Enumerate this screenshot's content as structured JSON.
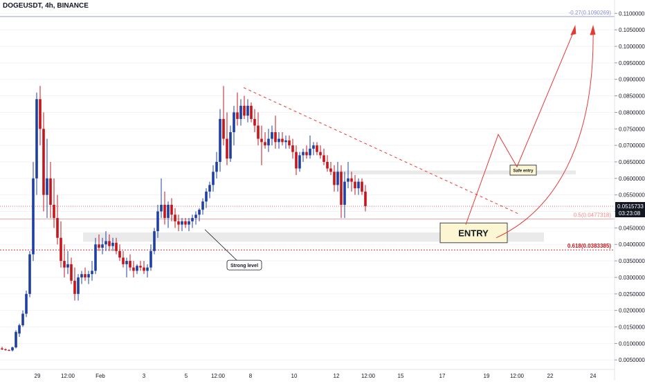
{
  "header": {
    "symbol": "DOGEUSDT, 4h, BINANCE"
  },
  "colors": {
    "bull": "#1f3fa3",
    "bear": "#c4161c",
    "annot": "#e53935",
    "zone": "#dcdcdc",
    "entry_fill": "#fdf6d3",
    "axis_text": "#131722",
    "price_tag": "#131722"
  },
  "chart_data": {
    "type": "candlestick",
    "title": "DOGEUSDT, 4h, BINANCE",
    "ylim": [
      0.004,
      0.111
    ],
    "y_ticks": [
      "0.1100000",
      "0.1050000",
      "0.1000000",
      "0.0950000",
      "0.0900000",
      "0.0850000",
      "0.0800000",
      "0.0750000",
      "0.0700000",
      "0.0650000",
      "0.0600000",
      "0.0550000",
      "0.0500000",
      "0.0450000",
      "0.0400000",
      "0.0350000",
      "0.0300000",
      "0.0250000",
      "0.0200000",
      "0.0150000",
      "0.0100000",
      "0.0050000"
    ],
    "x_ticks": [
      "29",
      "12:00",
      "Feb",
      "3",
      "5",
      "12:00",
      "8",
      "10",
      "12",
      "12:00",
      "15",
      "17",
      "19",
      "12:00",
      "22",
      "24"
    ],
    "last_price": "0.0515733",
    "countdown": "03:23:08",
    "fib_levels": [
      {
        "label": "-0.27(0.1090269)",
        "value": 0.1090269,
        "color": "#8a8fd8"
      },
      {
        "label": "0.5(0.0477318)",
        "value": 0.0477318,
        "color": "#ef8a86"
      },
      {
        "label": "0.618(0.0383385)",
        "value": 0.0383385,
        "color": "#c4161c"
      }
    ],
    "zones": [
      {
        "name": "support-zone",
        "top": 0.0436,
        "bottom": 0.0408
      },
      {
        "name": "resistance-zone",
        "top": 0.0624,
        "bottom": 0.0612
      }
    ],
    "annotations": {
      "strong_level": "Strong level",
      "entry": "ENTRY",
      "safe_entry": "Safe entry"
    },
    "candles": [
      [
        0.0085,
        0.009,
        0.008,
        0.0082
      ],
      [
        0.0082,
        0.0085,
        0.0078,
        0.008
      ],
      [
        0.008,
        0.0082,
        0.0077,
        0.0078
      ],
      [
        0.0079,
        0.009,
        0.0076,
        0.0088
      ],
      [
        0.0088,
        0.014,
        0.0085,
        0.0135
      ],
      [
        0.013,
        0.016,
        0.012,
        0.0155
      ],
      [
        0.0155,
        0.02,
        0.015,
        0.019
      ],
      [
        0.019,
        0.026,
        0.018,
        0.025
      ],
      [
        0.025,
        0.038,
        0.024,
        0.037
      ],
      [
        0.037,
        0.065,
        0.035,
        0.06
      ],
      [
        0.06,
        0.086,
        0.055,
        0.084
      ],
      [
        0.084,
        0.088,
        0.07,
        0.075
      ],
      [
        0.075,
        0.08,
        0.05,
        0.055
      ],
      [
        0.055,
        0.072,
        0.048,
        0.06
      ],
      [
        0.06,
        0.065,
        0.048,
        0.052
      ],
      [
        0.052,
        0.06,
        0.045,
        0.048
      ],
      [
        0.048,
        0.055,
        0.04,
        0.042
      ],
      [
        0.042,
        0.047,
        0.033,
        0.035
      ],
      [
        0.035,
        0.04,
        0.03,
        0.033
      ],
      [
        0.033,
        0.038,
        0.031,
        0.034
      ],
      [
        0.034,
        0.036,
        0.028,
        0.029
      ],
      [
        0.029,
        0.033,
        0.023,
        0.025
      ],
      [
        0.025,
        0.031,
        0.023,
        0.03
      ],
      [
        0.03,
        0.032,
        0.028,
        0.031
      ],
      [
        0.031,
        0.033,
        0.029,
        0.03
      ],
      [
        0.03,
        0.032,
        0.028,
        0.031
      ],
      [
        0.031,
        0.035,
        0.029,
        0.032
      ],
      [
        0.032,
        0.042,
        0.031,
        0.04
      ],
      [
        0.04,
        0.043,
        0.038,
        0.039
      ],
      [
        0.039,
        0.042,
        0.037,
        0.04
      ],
      [
        0.04,
        0.044,
        0.038,
        0.041
      ],
      [
        0.041,
        0.043,
        0.038,
        0.0395
      ],
      [
        0.0395,
        0.042,
        0.038,
        0.0405
      ],
      [
        0.0405,
        0.042,
        0.037,
        0.038
      ],
      [
        0.038,
        0.04,
        0.035,
        0.036
      ],
      [
        0.036,
        0.038,
        0.033,
        0.034
      ],
      [
        0.034,
        0.036,
        0.03,
        0.035
      ],
      [
        0.035,
        0.037,
        0.032,
        0.033
      ],
      [
        0.033,
        0.035,
        0.03,
        0.032
      ],
      [
        0.032,
        0.034,
        0.031,
        0.0335
      ],
      [
        0.0335,
        0.035,
        0.032,
        0.033
      ],
      [
        0.033,
        0.035,
        0.031,
        0.032
      ],
      [
        0.032,
        0.034,
        0.03,
        0.033
      ],
      [
        0.033,
        0.04,
        0.032,
        0.038
      ],
      [
        0.038,
        0.045,
        0.037,
        0.044
      ],
      [
        0.044,
        0.052,
        0.042,
        0.05
      ],
      [
        0.05,
        0.06,
        0.048,
        0.052
      ],
      [
        0.052,
        0.056,
        0.046,
        0.048
      ],
      [
        0.048,
        0.053,
        0.045,
        0.052
      ],
      [
        0.052,
        0.054,
        0.047,
        0.049
      ],
      [
        0.049,
        0.051,
        0.045,
        0.047
      ],
      [
        0.047,
        0.049,
        0.044,
        0.046
      ],
      [
        0.046,
        0.048,
        0.044,
        0.047
      ],
      [
        0.047,
        0.048,
        0.045,
        0.046
      ],
      [
        0.046,
        0.048,
        0.044,
        0.047
      ],
      [
        0.047,
        0.049,
        0.045,
        0.048
      ],
      [
        0.048,
        0.05,
        0.046,
        0.049
      ],
      [
        0.049,
        0.051,
        0.047,
        0.0505
      ],
      [
        0.0505,
        0.054,
        0.049,
        0.053
      ],
      [
        0.053,
        0.057,
        0.051,
        0.056
      ],
      [
        0.056,
        0.059,
        0.054,
        0.058
      ],
      [
        0.058,
        0.064,
        0.056,
        0.062
      ],
      [
        0.062,
        0.068,
        0.06,
        0.065
      ],
      [
        0.065,
        0.081,
        0.062,
        0.078
      ],
      [
        0.078,
        0.088,
        0.07,
        0.072
      ],
      [
        0.072,
        0.08,
        0.064,
        0.066
      ],
      [
        0.066,
        0.076,
        0.065,
        0.074
      ],
      [
        0.074,
        0.082,
        0.07,
        0.08
      ],
      [
        0.08,
        0.086,
        0.076,
        0.078
      ],
      [
        0.078,
        0.084,
        0.076,
        0.082
      ],
      [
        0.082,
        0.085,
        0.078,
        0.079
      ],
      [
        0.079,
        0.084,
        0.077,
        0.082
      ],
      [
        0.082,
        0.083,
        0.077,
        0.078
      ],
      [
        0.078,
        0.081,
        0.074,
        0.076
      ],
      [
        0.076,
        0.08,
        0.07,
        0.072
      ],
      [
        0.072,
        0.076,
        0.064,
        0.071
      ],
      [
        0.071,
        0.074,
        0.069,
        0.07
      ],
      [
        0.07,
        0.075,
        0.068,
        0.072
      ],
      [
        0.072,
        0.076,
        0.07,
        0.074
      ],
      [
        0.074,
        0.079,
        0.069,
        0.071
      ],
      [
        0.071,
        0.074,
        0.069,
        0.072
      ],
      [
        0.072,
        0.074,
        0.07,
        0.071
      ],
      [
        0.071,
        0.073,
        0.069,
        0.0715
      ],
      [
        0.0715,
        0.073,
        0.069,
        0.07
      ],
      [
        0.07,
        0.072,
        0.066,
        0.068
      ],
      [
        0.068,
        0.07,
        0.061,
        0.063
      ],
      [
        0.063,
        0.068,
        0.062,
        0.067
      ],
      [
        0.067,
        0.069,
        0.065,
        0.068
      ],
      [
        0.068,
        0.07,
        0.066,
        0.067
      ],
      [
        0.067,
        0.073,
        0.066,
        0.069
      ],
      [
        0.069,
        0.071,
        0.067,
        0.07
      ],
      [
        0.07,
        0.071,
        0.067,
        0.068
      ],
      [
        0.068,
        0.07,
        0.066,
        0.067
      ],
      [
        0.067,
        0.069,
        0.064,
        0.065
      ],
      [
        0.065,
        0.067,
        0.062,
        0.063
      ],
      [
        0.063,
        0.065,
        0.061,
        0.062
      ],
      [
        0.062,
        0.064,
        0.056,
        0.058
      ],
      [
        0.058,
        0.065,
        0.056,
        0.062
      ],
      [
        0.062,
        0.064,
        0.048,
        0.052
      ],
      [
        0.052,
        0.062,
        0.048,
        0.059
      ],
      [
        0.059,
        0.065,
        0.057,
        0.06
      ],
      [
        0.06,
        0.062,
        0.056,
        0.059
      ],
      [
        0.059,
        0.061,
        0.055,
        0.057
      ],
      [
        0.057,
        0.06,
        0.055,
        0.059
      ],
      [
        0.059,
        0.06,
        0.055,
        0.056
      ],
      [
        0.056,
        0.058,
        0.05,
        0.0516
      ]
    ]
  }
}
